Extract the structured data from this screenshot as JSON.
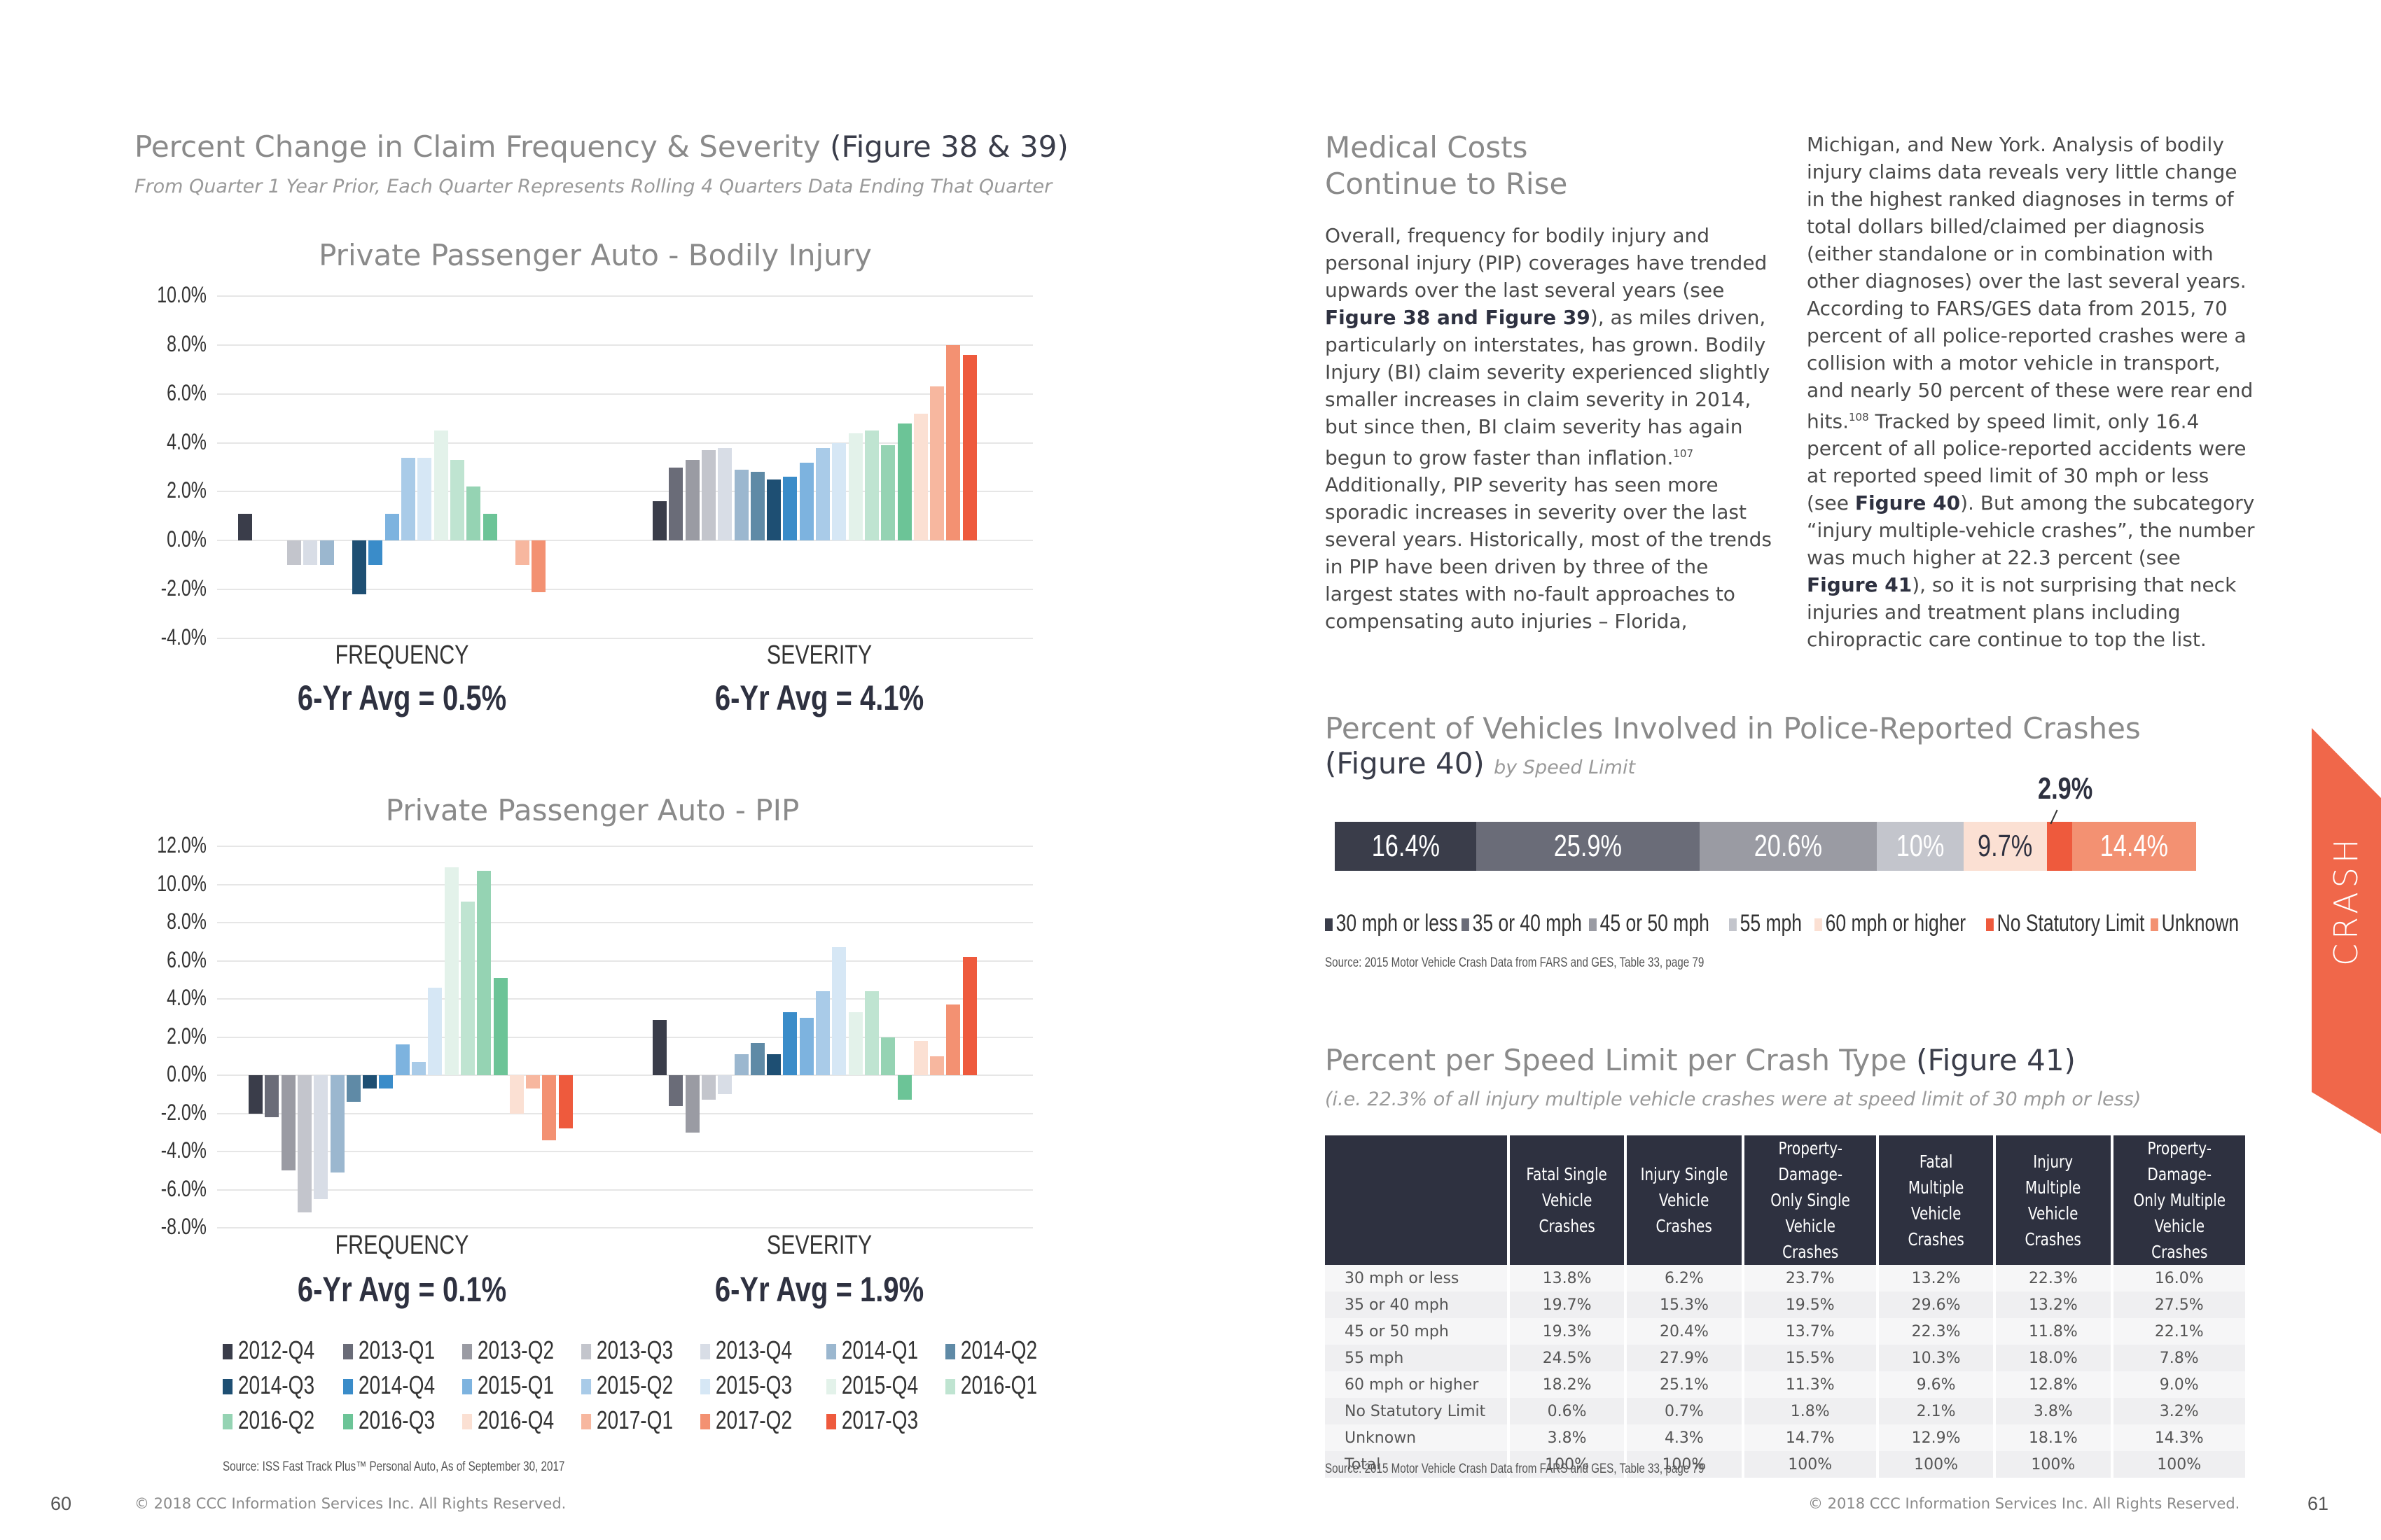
{
  "left": {
    "title": "Percent Change in Claim Frequency & Severity",
    "title_fig": "(Figure 38 & 39)",
    "subtitle": "From Quarter 1 Year Prior, Each Quarter Represents Rolling 4 Quarters Data Ending That Quarter",
    "source": "Source:  ISS Fast Track Plus™ Personal Auto, As of September 30, 2017",
    "footer": "© 2018 CCC Information Services Inc. All Rights Reserved.",
    "page": "60"
  },
  "chart_data": [
    {
      "type": "bar",
      "title": "Private Passenger Auto - Bodily Injury",
      "groups": [
        "FREQUENCY",
        "SEVERITY"
      ],
      "group_avgs": [
        "6-Yr Avg = 0.5%",
        "6-Yr Avg = 4.1%"
      ],
      "yticks": [
        "10.0%",
        "8.0%",
        "6.0%",
        "4.0%",
        "2.0%",
        "0.0%",
        "-2.0%",
        "-4.0%"
      ],
      "ylim": [
        -4,
        10
      ],
      "categories": [
        "2012-Q4",
        "2013-Q1",
        "2013-Q2",
        "2013-Q3",
        "2013-Q4",
        "2014-Q1",
        "2014-Q2",
        "2014-Q3",
        "2014-Q4",
        "2015-Q1",
        "2015-Q2",
        "2015-Q3",
        "2015-Q4",
        "2016-Q1",
        "2016-Q2",
        "2016-Q3",
        "2016-Q4",
        "2017-Q1",
        "2017-Q2",
        "2017-Q3"
      ],
      "series": [
        {
          "name": "FREQUENCY",
          "values": [
            1.1,
            null,
            null,
            -1.0,
            -1.0,
            -1.0,
            null,
            -2.2,
            -1.0,
            1.1,
            3.4,
            3.4,
            4.5,
            3.3,
            2.2,
            1.1,
            null,
            -1.0,
            -2.1,
            null
          ]
        },
        {
          "name": "SEVERITY",
          "values": [
            1.6,
            3.0,
            3.3,
            3.7,
            3.8,
            2.9,
            2.8,
            2.5,
            2.6,
            3.2,
            3.8,
            4.0,
            4.4,
            4.5,
            3.9,
            4.8,
            5.2,
            6.3,
            8.0,
            7.6
          ]
        }
      ]
    },
    {
      "type": "bar",
      "title": "Private Passenger Auto - PIP",
      "groups": [
        "FREQUENCY",
        "SEVERITY"
      ],
      "group_avgs": [
        "6-Yr Avg = 0.1%",
        "6-Yr Avg = 1.9%"
      ],
      "yticks": [
        "12.0%",
        "10.0%",
        "8.0%",
        "6.0%",
        "4.0%",
        "2.0%",
        "0.0%",
        "-2.0%",
        "-4.0%",
        "-6.0%",
        "-8.0%"
      ],
      "ylim": [
        -8,
        12
      ],
      "categories": [
        "2012-Q4",
        "2013-Q1",
        "2013-Q2",
        "2013-Q3",
        "2013-Q4",
        "2014-Q1",
        "2014-Q2",
        "2014-Q3",
        "2014-Q4",
        "2015-Q1",
        "2015-Q2",
        "2015-Q3",
        "2015-Q4",
        "2016-Q1",
        "2016-Q2",
        "2016-Q3",
        "2016-Q4",
        "2017-Q1",
        "2017-Q2",
        "2017-Q3"
      ],
      "series": [
        {
          "name": "FREQUENCY",
          "values": [
            -2.0,
            -2.2,
            -5.0,
            -7.2,
            -6.5,
            -5.1,
            -1.4,
            -0.7,
            -0.7,
            1.6,
            0.7,
            4.6,
            10.9,
            9.1,
            10.7,
            5.1,
            -2.0,
            -0.7,
            -3.4,
            -2.8
          ]
        },
        {
          "name": "SEVERITY",
          "values": [
            2.9,
            -1.6,
            -3.0,
            -1.3,
            -1.0,
            1.1,
            1.7,
            1.1,
            3.3,
            3.0,
            4.4,
            6.7,
            3.3,
            4.4,
            2.0,
            -1.3,
            1.8,
            1.0,
            3.7,
            6.2
          ]
        }
      ]
    },
    {
      "type": "bar",
      "title": "Percent of Vehicles Involved in Police-Reported Crashes",
      "categories": [
        "30 mph or less",
        "35 or 40 mph",
        "45 or 50 mph",
        "55 mph",
        "60 mph or higher",
        "No Statutory Limit",
        "Unknown"
      ],
      "values": [
        16.4,
        25.9,
        20.6,
        10,
        9.7,
        2.9,
        14.4
      ],
      "labels": [
        "16.4%",
        "25.9%",
        "20.6%",
        "10%",
        "9.7%",
        "2.9%",
        "14.4%"
      ],
      "orientation": "horizontal-stacked"
    }
  ],
  "legend": [
    {
      "label": "2012-Q4",
      "color": "#3a3d4a"
    },
    {
      "label": "2013-Q1",
      "color": "#6a6c78"
    },
    {
      "label": "2013-Q2",
      "color": "#9a9ba3"
    },
    {
      "label": "2013-Q3",
      "color": "#c3c5cc"
    },
    {
      "label": "2013-Q4",
      "color": "#d8dde6"
    },
    {
      "label": "2014-Q1",
      "color": "#9bb7cf"
    },
    {
      "label": "2014-Q2",
      "color": "#5f8aa6"
    },
    {
      "label": "2014-Q3",
      "color": "#1e4f73"
    },
    {
      "label": "2014-Q4",
      "color": "#3a8cc9"
    },
    {
      "label": "2015-Q1",
      "color": "#7db3df"
    },
    {
      "label": "2015-Q2",
      "color": "#a9cbe8"
    },
    {
      "label": "2015-Q3",
      "color": "#d6e7f5"
    },
    {
      "label": "2015-Q4",
      "color": "#e3f2ea"
    },
    {
      "label": "2016-Q1",
      "color": "#bfe4d1"
    },
    {
      "label": "2016-Q2",
      "color": "#95d3b3"
    },
    {
      "label": "2016-Q3",
      "color": "#6cc497"
    },
    {
      "label": "2016-Q4",
      "color": "#fbe0d3"
    },
    {
      "label": "2017-Q1",
      "color": "#f7b79f"
    },
    {
      "label": "2017-Q2",
      "color": "#f39172"
    },
    {
      "label": "2017-Q3",
      "color": "#ee5a3d"
    }
  ],
  "right": {
    "article_title_1": "Medical Costs",
    "article_title_2": "Continue to Rise",
    "fig40_title": "Percent of Vehicles Involved in Police-Reported Crashes",
    "fig40_fig": "(Figure 40)",
    "fig40_by": "by Speed Limit",
    "fig40_colors": [
      "#3a3d4a",
      "#6a6c78",
      "#9a9ba3",
      "#c3c5cc",
      "#fbe0d3",
      "#ee5a3d",
      "#f39172"
    ],
    "fig40_source": "Source:  2015 Motor Vehicle Crash Data from FARS and GES, Table 33, page 79",
    "fig41_title": "Percent per Speed Limit per Crash Type",
    "fig41_fig": "(Figure 41)",
    "fig41_sub": "(i.e. 22.3% of all injury multiple vehicle crashes were at speed limit of 30 mph or less)",
    "fig41_source": "Source:  2015 Motor Vehicle Crash Data from FARS and GES, Table 33, page 79",
    "footer": "© 2018 CCC Information Services Inc. All Rights Reserved.",
    "page": "61",
    "tab": "CRASH"
  },
  "table": {
    "headers": [
      [
        "Fatal Single",
        "Vehicle Crashes"
      ],
      [
        "Injury Single",
        "Vehicle Crashes"
      ],
      [
        "Property-Damage-",
        "Only Single",
        "Vehicle Crashes"
      ],
      [
        "Fatal Multiple",
        "Vehicle Crashes"
      ],
      [
        "Injury Multiple",
        "Vehicle Crashes"
      ],
      [
        "Property-Damage-",
        "Only Multiple",
        "Vehicle Crashes"
      ]
    ],
    "rows": [
      [
        "30 mph or less",
        "13.8%",
        "6.2%",
        "23.7%",
        "13.2%",
        "22.3%",
        "16.0%"
      ],
      [
        "35 or 40 mph",
        "19.7%",
        "15.3%",
        "19.5%",
        "29.6%",
        "13.2%",
        "27.5%"
      ],
      [
        "45 or 50 mph",
        "19.3%",
        "20.4%",
        "13.7%",
        "22.3%",
        "11.8%",
        "22.1%"
      ],
      [
        "55 mph",
        "24.5%",
        "27.9%",
        "15.5%",
        "10.3%",
        "18.0%",
        "7.8%"
      ],
      [
        "60 mph or higher",
        "18.2%",
        "25.1%",
        "11.3%",
        "9.6%",
        "12.8%",
        "9.0%"
      ],
      [
        "No Statutory Limit",
        "0.6%",
        "0.7%",
        "1.8%",
        "2.1%",
        "3.8%",
        "3.2%"
      ],
      [
        "Unknown",
        "3.8%",
        "4.3%",
        "14.7%",
        "12.9%",
        "18.1%",
        "14.3%"
      ],
      [
        "Total",
        "100%",
        "100%",
        "100%",
        "100%",
        "100%",
        "100%"
      ]
    ]
  },
  "article": {
    "col1": [
      {
        "t": "Overall, frequency for bodily injury and personal injury (PIP) coverages have trended upwards over the last several years (see "
      },
      {
        "b": "Figure 38 and Figure 39"
      },
      {
        "t": "), as miles driven, particularly on interstates, has grown. Bodily Injury (BI) claim severity experienced slightly smaller increases in claim severity in 2014, but since then, BI claim severity has again begun to grow faster than inflation."
      },
      {
        "s": "107"
      },
      {
        "t": " Additionally, PIP severity has seen more sporadic increases in severity over the last several years.  Historically, most of the trends in PIP have been driven by three of the largest states with no-fault approaches to compensating auto injuries – Florida,"
      }
    ],
    "col2": [
      {
        "t": "Michigan, and New York.  Analysis of bodily injury claims data reveals very little change in the highest ranked diagnoses in terms of total dollars billed/claimed per diagnosis (either standalone or in combination with other diagnoses) over the last several years. According to FARS/GES data from 2015, 70 percent of all police-reported crashes were a collision with a motor vehicle in transport, and nearly 50 percent of these were rear end hits."
      },
      {
        "s": "108"
      },
      {
        "t": "  Tracked by speed limit, only 16.4 percent of all police-reported accidents were at reported speed limit of 30 mph or less (see "
      },
      {
        "b": "Figure 40"
      },
      {
        "t": ").  But among the subcategory “injury multiple-vehicle crashes”, the number was much higher at 22.3 percent (see "
      },
      {
        "b": "Figure 41"
      },
      {
        "t": "), so it is not surprising that neck injuries and treatment plans including chiropractic care continue to top the list."
      }
    ]
  }
}
